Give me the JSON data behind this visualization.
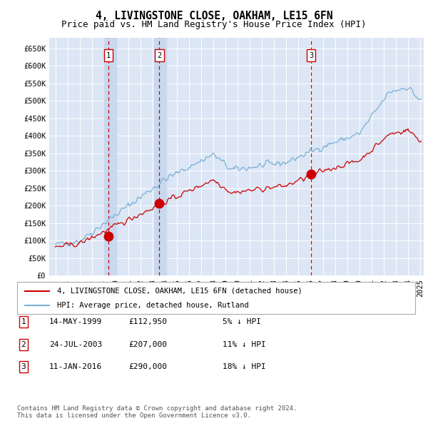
{
  "title": "4, LIVINGSTONE CLOSE, OAKHAM, LE15 6FN",
  "subtitle": "Price paid vs. HM Land Registry's House Price Index (HPI)",
  "ylim": [
    0,
    680000
  ],
  "yticks": [
    0,
    50000,
    100000,
    150000,
    200000,
    250000,
    300000,
    350000,
    400000,
    450000,
    500000,
    550000,
    600000,
    650000
  ],
  "xlim_start": 1994.5,
  "xlim_end": 2025.3,
  "background_color": "#ffffff",
  "plot_bg_color": "#dce6f5",
  "grid_color": "#ffffff",
  "line_color_red": "#cc0000",
  "line_color_blue": "#7ab0d4",
  "sale_marker_color": "#cc0000",
  "vline_color": "#cc0000",
  "band_color": "#c8d8ee",
  "transaction_dates": [
    1999.37,
    2003.56,
    2016.03
  ],
  "transaction_values": [
    112950,
    207000,
    290000
  ],
  "transaction_labels": [
    "1",
    "2",
    "3"
  ],
  "legend_label_red": "4, LIVINGSTONE CLOSE, OAKHAM, LE15 6FN (detached house)",
  "legend_label_blue": "HPI: Average price, detached house, Rutland",
  "table_entries": [
    [
      "1",
      "14-MAY-1999",
      "£112,950",
      "5% ↓ HPI"
    ],
    [
      "2",
      "24-JUL-2003",
      "£207,000",
      "11% ↓ HPI"
    ],
    [
      "3",
      "11-JAN-2016",
      "£290,000",
      "18% ↓ HPI"
    ]
  ],
  "footnote": "Contains HM Land Registry data © Crown copyright and database right 2024.\nThis data is licensed under the Open Government Licence v3.0.",
  "title_fontsize": 10.5,
  "subtitle_fontsize": 9,
  "axis_fontsize": 7.5,
  "legend_fontsize": 7.5,
  "table_fontsize": 8,
  "footnote_fontsize": 6.5
}
